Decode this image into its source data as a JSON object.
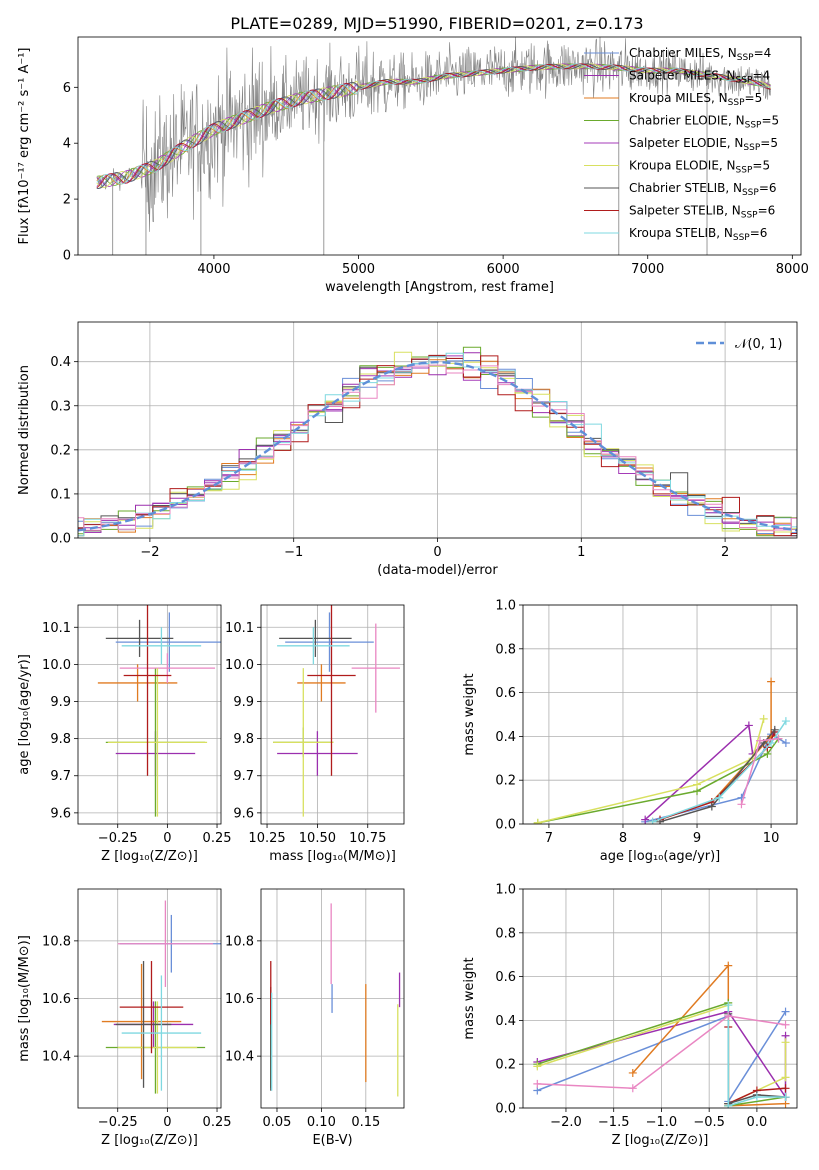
{
  "title": "PLATE=0289, MJD=51990, FIBERID=0201, z=0.173",
  "colors": [
    "#6a8fd8",
    "#9b2fae",
    "#e07b22",
    "#6aaa2d",
    "#a53bb8",
    "#d8e060",
    "#555555",
    "#b01c1c",
    "#7fd8e0",
    "#e986c2"
  ],
  "chart_data": [
    {
      "id": "spectrum",
      "type": "line",
      "xlabel": "wavelength [Angstrom, rest frame]",
      "ylabel": "Flux [fλ10⁻¹⁷ erg cm⁻² s⁻¹ A⁻¹]",
      "xlim": [
        3060,
        8060
      ],
      "ylim": [
        0,
        7.8
      ],
      "xticks": [
        4000,
        5000,
        6000,
        7000,
        8000
      ],
      "yticks": [
        0,
        2,
        4,
        6
      ],
      "legend_position": "top-right",
      "series": [
        {
          "name": "Chabrier MILES, N_SSP=4",
          "color": "#6a8fd8"
        },
        {
          "name": "Salpeter MILES, N_SSP=4",
          "color": "#9b2fae"
        },
        {
          "name": "Kroupa MILES, N_SSP=5",
          "color": "#e07b22"
        },
        {
          "name": "Chabrier ELODIE, N_SSP=5",
          "color": "#6aaa2d"
        },
        {
          "name": "Salpeter ELODIE, N_SSP=5",
          "color": "#a53bb8"
        },
        {
          "name": "Kroupa ELODIE, N_SSP=5",
          "color": "#d8e060"
        },
        {
          "name": "Chabrier STELIB, N_SSP=6",
          "color": "#555555"
        },
        {
          "name": "Salpeter STELIB, N_SSP=6",
          "color": "#b01c1c"
        },
        {
          "name": "Kroupa STELIB, N_SSP=6",
          "color": "#7fd8e0"
        }
      ],
      "continuum": {
        "x": [
          3200,
          3400,
          3600,
          3800,
          4000,
          4200,
          4400,
          4600,
          4800,
          5000,
          5200,
          5400,
          5600,
          5800,
          6000,
          6200,
          6400,
          6600,
          6800,
          7000,
          7200,
          7400,
          7600,
          7800,
          7850
        ],
        "y": [
          2.6,
          2.8,
          3.2,
          3.9,
          4.5,
          4.9,
          5.3,
          5.6,
          5.8,
          6.0,
          6.2,
          6.2,
          6.4,
          6.5,
          6.6,
          6.7,
          6.75,
          6.75,
          6.7,
          6.6,
          6.6,
          6.45,
          6.3,
          6.1,
          6.0
        ]
      }
    },
    {
      "id": "residuals",
      "type": "histogram",
      "xlabel": "(data-model)/error",
      "ylabel": "Normed distribution",
      "xlim": [
        -2.5,
        2.5
      ],
      "ylim": [
        0,
        0.49
      ],
      "xticks": [
        -2,
        -1,
        0,
        1,
        2
      ],
      "yticks": [
        0.0,
        0.1,
        0.2,
        0.3,
        0.4
      ],
      "legend": "𝒩(0, 1)",
      "legend_position": "top-right",
      "reference_curve": "standard normal N(0,1)"
    },
    {
      "id": "age_vs_Z",
      "type": "scatter",
      "xlabel": "Z [log₁₀(Z/Z⊙)]",
      "ylabel": "age  [log₁₀(age/yr)]",
      "xlim": [
        -0.45,
        0.27
      ],
      "ylim": [
        9.57,
        10.16
      ],
      "xticks": [
        -0.25,
        0.0,
        0.25
      ],
      "yticks": [
        9.6,
        9.7,
        9.8,
        9.9,
        10.0,
        10.1
      ],
      "points": [
        {
          "x": 0.01,
          "y": 10.06,
          "xerr": 0.27,
          "yerr": 0.08,
          "color": "#6a8fd8"
        },
        {
          "x": -0.06,
          "y": 9.76,
          "xerr": 0.2,
          "yerr": 0.06,
          "color": "#9b2fae"
        },
        {
          "x": -0.15,
          "y": 9.95,
          "xerr": 0.2,
          "yerr": 0.05,
          "color": "#e07b22"
        },
        {
          "x": -0.06,
          "y": 9.79,
          "xerr": 0.25,
          "yerr": 0.2,
          "color": "#6aaa2d"
        },
        {
          "x": 0.0,
          "y": 9.99,
          "xerr": 0.24,
          "yerr": 0.04,
          "color": "#e986c2"
        },
        {
          "x": -0.05,
          "y": 9.79,
          "xerr": 0.25,
          "yerr": 0.2,
          "color": "#d8e060"
        },
        {
          "x": -0.14,
          "y": 10.07,
          "xerr": 0.17,
          "yerr": 0.05,
          "color": "#555555"
        },
        {
          "x": -0.1,
          "y": 9.97,
          "xerr": 0.12,
          "yerr": 0.27,
          "color": "#b01c1c"
        },
        {
          "x": -0.03,
          "y": 10.05,
          "xerr": 0.2,
          "yerr": 0.05,
          "color": "#7fd8e0"
        }
      ]
    },
    {
      "id": "age_vs_mass",
      "type": "scatter",
      "xlabel": "mass [log₁₀(M/M⊙)]",
      "ylabel": "",
      "xlim": [
        10.22,
        10.93
      ],
      "ylim": [
        9.57,
        10.16
      ],
      "xticks": [
        10.25,
        10.5,
        10.75
      ],
      "yticks": [
        9.6,
        9.7,
        9.8,
        9.9,
        10.0,
        10.1
      ],
      "points": [
        {
          "x": 10.56,
          "y": 10.06,
          "xerr": 0.22,
          "yerr": 0.08,
          "color": "#6a8fd8"
        },
        {
          "x": 10.5,
          "y": 9.76,
          "xerr": 0.2,
          "yerr": 0.06,
          "color": "#9b2fae"
        },
        {
          "x": 10.52,
          "y": 9.95,
          "xerr": 0.12,
          "yerr": 0.05,
          "color": "#e07b22"
        },
        {
          "x": 10.43,
          "y": 9.79,
          "xerr": 0.15,
          "yerr": 0.04,
          "color": "#6aaa2d"
        },
        {
          "x": 10.79,
          "y": 9.99,
          "xerr": 0.12,
          "yerr": 0.12,
          "color": "#e986c2"
        },
        {
          "x": 10.43,
          "y": 9.79,
          "xerr": 0.15,
          "yerr": 0.2,
          "color": "#d8e060"
        },
        {
          "x": 10.49,
          "y": 10.07,
          "xerr": 0.18,
          "yerr": 0.05,
          "color": "#555555"
        },
        {
          "x": 10.57,
          "y": 9.97,
          "xerr": 0.12,
          "yerr": 0.27,
          "color": "#b01c1c"
        },
        {
          "x": 10.48,
          "y": 10.05,
          "xerr": 0.18,
          "yerr": 0.05,
          "color": "#7fd8e0"
        }
      ]
    },
    {
      "id": "weight_vs_age",
      "type": "line",
      "xlabel": "age  [log₁₀(age/yr)]",
      "ylabel": "mass weight",
      "xlim": [
        6.65,
        10.35
      ],
      "ylim": [
        0,
        1.0
      ],
      "xticks": [
        7,
        8,
        9,
        10
      ],
      "yticks": [
        0.0,
        0.2,
        0.4,
        0.6,
        0.8,
        1.0
      ],
      "series": [
        {
          "color": "#6a8fd8",
          "x": [
            8.3,
            9.6,
            10.0,
            10.2
          ],
          "y": [
            0.01,
            0.12,
            0.41,
            0.37
          ]
        },
        {
          "color": "#9b2fae",
          "x": [
            8.3,
            9.7,
            9.75,
            10.05
          ],
          "y": [
            0.02,
            0.45,
            0.32,
            0.42
          ]
        },
        {
          "color": "#e07b22",
          "x": [
            8.4,
            9.2,
            10.0,
            10.0
          ],
          "y": [
            0.01,
            0.1,
            0.4,
            0.65
          ]
        },
        {
          "color": "#6aaa2d",
          "x": [
            6.85,
            9.0,
            9.95,
            10.1
          ],
          "y": [
            0.005,
            0.15,
            0.32,
            0.39
          ]
        },
        {
          "color": "#d8e060",
          "x": [
            6.85,
            9.0,
            9.75,
            9.9
          ],
          "y": [
            0.005,
            0.18,
            0.3,
            0.48
          ]
        },
        {
          "color": "#b01c1c",
          "x": [
            8.5,
            9.2,
            9.95,
            10.05
          ],
          "y": [
            0.02,
            0.1,
            0.35,
            0.42
          ]
        },
        {
          "color": "#555555",
          "x": [
            8.5,
            9.2,
            9.9,
            10.05
          ],
          "y": [
            0.01,
            0.08,
            0.37,
            0.43
          ]
        },
        {
          "color": "#7fd8e0",
          "x": [
            8.4,
            9.3,
            10.0,
            10.2
          ],
          "y": [
            0.01,
            0.12,
            0.37,
            0.47
          ]
        },
        {
          "color": "#e986c2",
          "x": [
            9.6,
            9.85,
            10.1
          ],
          "y": [
            0.09,
            0.38,
            0.39
          ]
        }
      ]
    },
    {
      "id": "mass_vs_Z",
      "type": "scatter",
      "xlabel": "Z [log₁₀(Z/Z⊙)]",
      "ylabel": "mass [log₁₀(M/M⊙)]",
      "xlim": [
        -0.45,
        0.27
      ],
      "ylim": [
        10.22,
        10.98
      ],
      "xticks": [
        -0.25,
        0.0,
        0.25
      ],
      "yticks": [
        10.4,
        10.6,
        10.8
      ],
      "points": [
        {
          "x": 0.02,
          "y": 10.79,
          "xerr": 0.26,
          "yerr": 0.1,
          "color": "#6a8fd8"
        },
        {
          "x": -0.07,
          "y": 10.51,
          "xerr": 0.2,
          "yerr": 0.08,
          "color": "#9b2fae"
        },
        {
          "x": -0.13,
          "y": 10.52,
          "xerr": 0.2,
          "yerr": 0.2,
          "color": "#e07b22"
        },
        {
          "x": -0.06,
          "y": 10.43,
          "xerr": 0.25,
          "yerr": 0.16,
          "color": "#6aaa2d"
        },
        {
          "x": -0.01,
          "y": 10.79,
          "xerr": 0.24,
          "yerr": 0.15,
          "color": "#e986c2"
        },
        {
          "x": -0.05,
          "y": 10.43,
          "xerr": 0.2,
          "yerr": 0.16,
          "color": "#d8e060"
        },
        {
          "x": -0.12,
          "y": 10.51,
          "xerr": 0.14,
          "yerr": 0.22,
          "color": "#555555"
        },
        {
          "x": -0.08,
          "y": 10.57,
          "xerr": 0.16,
          "yerr": 0.16,
          "color": "#b01c1c"
        },
        {
          "x": -0.03,
          "y": 10.48,
          "xerr": 0.2,
          "yerr": 0.2,
          "color": "#7fd8e0"
        }
      ]
    },
    {
      "id": "mass_vs_EBV",
      "type": "scatter",
      "xlabel": "E(B-V)",
      "ylabel": "",
      "xlim": [
        0.032,
        0.193
      ],
      "ylim": [
        10.22,
        10.98
      ],
      "xticks": [
        0.05,
        0.1,
        0.15
      ],
      "yticks": [
        10.4,
        10.6,
        10.8
      ],
      "points": [
        {
          "x": 0.112,
          "y": 10.6,
          "yerr": 0.05,
          "color": "#6a8fd8"
        },
        {
          "x": 0.188,
          "y": 10.63,
          "yerr": 0.06,
          "color": "#9b2fae"
        },
        {
          "x": 0.15,
          "y": 10.48,
          "yerr": 0.17,
          "color": "#e07b22"
        },
        {
          "x": 0.043,
          "y": 10.46,
          "yerr": 0.17,
          "color": "#6aaa2d"
        },
        {
          "x": 0.111,
          "y": 10.79,
          "yerr": 0.14,
          "color": "#e986c2"
        },
        {
          "x": 0.186,
          "y": 10.42,
          "yerr": 0.16,
          "color": "#d8e060"
        },
        {
          "x": 0.043,
          "y": 10.46,
          "yerr": 0.18,
          "color": "#555555"
        },
        {
          "x": 0.043,
          "y": 10.62,
          "yerr": 0.11,
          "color": "#b01c1c"
        },
        {
          "x": 0.044,
          "y": 10.45,
          "yerr": 0.17,
          "color": "#7fd8e0"
        }
      ]
    },
    {
      "id": "weight_vs_Z",
      "type": "line",
      "xlabel": "Z [log₁₀(Z/Z⊙)]",
      "ylabel": "mass weight",
      "xlim": [
        -2.45,
        0.42
      ],
      "ylim": [
        0,
        1.0
      ],
      "xticks": [
        -2.0,
        -1.5,
        -1.0,
        -0.5,
        0.0
      ],
      "yticks": [
        0.0,
        0.2,
        0.4,
        0.6,
        0.8,
        1.0
      ],
      "series": [
        {
          "color": "#6a8fd8",
          "x": [
            -2.3,
            -0.3,
            -0.3,
            0.3
          ],
          "y": [
            0.08,
            0.42,
            0.03,
            0.44
          ]
        },
        {
          "color": "#9b2fae",
          "x": [
            -2.3,
            -0.3,
            0.3,
            0.3
          ],
          "y": [
            0.21,
            0.44,
            0.05,
            0.33
          ]
        },
        {
          "color": "#e07b22",
          "x": [
            -1.3,
            -0.3,
            -0.3,
            0.3
          ],
          "y": [
            0.16,
            0.65,
            0.01,
            0.02
          ]
        },
        {
          "color": "#6aaa2d",
          "x": [
            -2.3,
            -0.3,
            -0.3,
            0.3
          ],
          "y": [
            0.2,
            0.48,
            0.01,
            0.05
          ]
        },
        {
          "color": "#d8e060",
          "x": [
            -2.3,
            -0.3,
            -0.3,
            0.3,
            0.3
          ],
          "y": [
            0.19,
            0.47,
            0.02,
            0.14,
            0.3
          ]
        },
        {
          "color": "#b01c1c",
          "x": [
            -0.3,
            -0.3,
            0.0,
            0.3
          ],
          "y": [
            0.37,
            0.02,
            0.08,
            0.09
          ]
        },
        {
          "color": "#555555",
          "x": [
            -0.3,
            -0.3,
            0.0,
            0.3
          ],
          "y": [
            0.43,
            0.02,
            0.06,
            0.05
          ]
        },
        {
          "color": "#7fd8e0",
          "x": [
            -0.3,
            -0.3,
            0.0,
            0.3
          ],
          "y": [
            0.47,
            0.01,
            0.05,
            0.05
          ]
        },
        {
          "color": "#e986c2",
          "x": [
            -2.3,
            -1.3,
            -0.3,
            0.3
          ],
          "y": [
            0.11,
            0.09,
            0.42,
            0.38
          ]
        }
      ]
    }
  ]
}
